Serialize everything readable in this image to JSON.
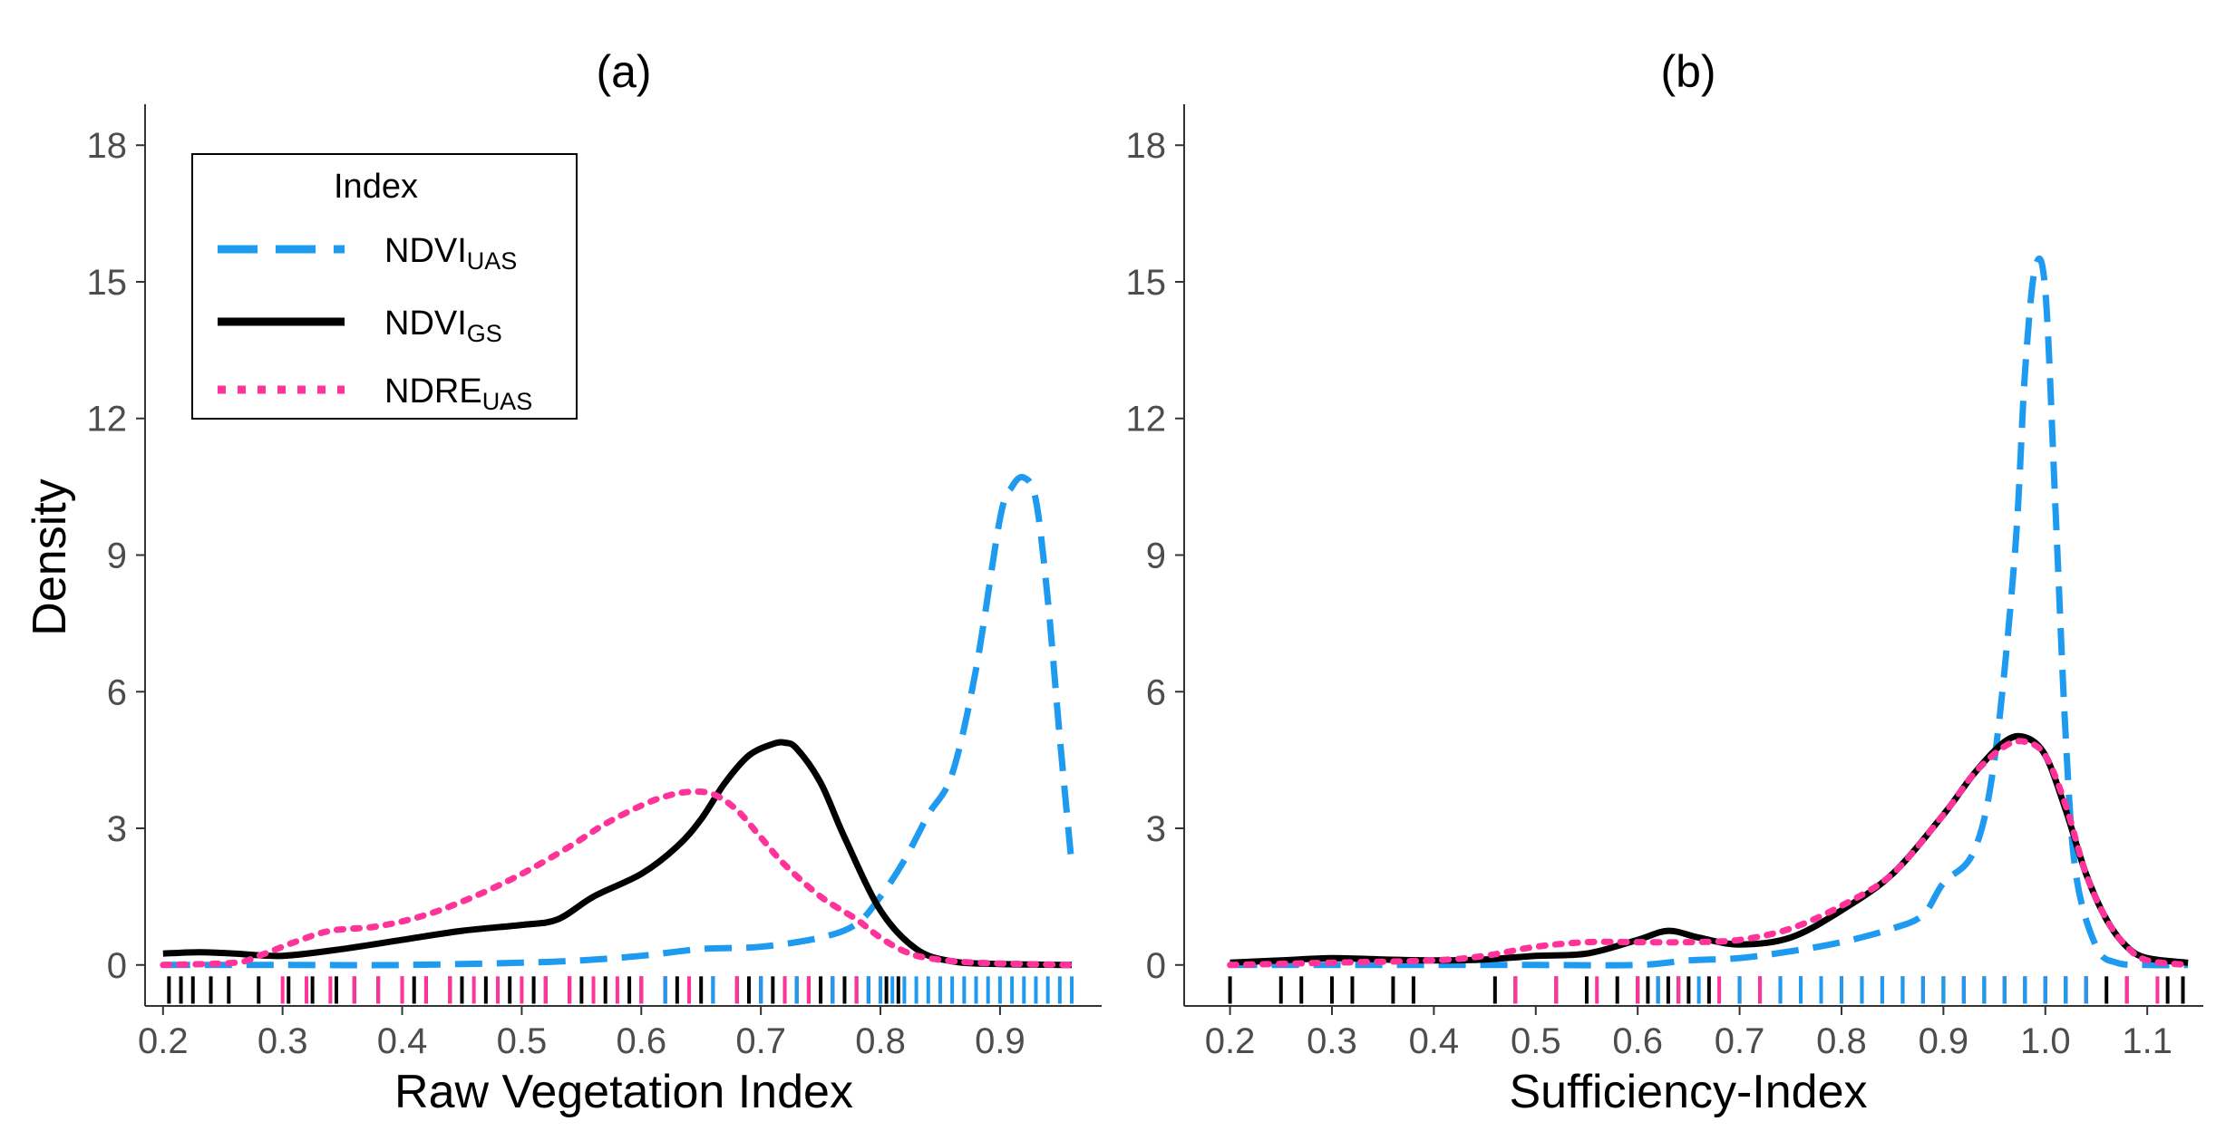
{
  "ylabel": "Density",
  "legend": {
    "title": "Index",
    "items": [
      {
        "base": "NDVI",
        "sub": "UAS",
        "color": "#1E9BF0",
        "dash": "dashed"
      },
      {
        "base": "NDVI",
        "sub": "GS",
        "color": "#000000",
        "dash": "solid"
      },
      {
        "base": "NDRE",
        "sub": "UAS",
        "color": "#FF3399",
        "dash": "dotted"
      }
    ]
  },
  "chart_data": [
    {
      "type": "line",
      "title": "(a)",
      "xlabel": "Raw Vegetation Index",
      "ylabel": "Density",
      "xlim": [
        0.185,
        0.985
      ],
      "ylim": [
        -0.9,
        18.9
      ],
      "xticks": [
        0.2,
        0.3,
        0.4,
        0.5,
        0.6,
        0.7,
        0.8,
        0.9
      ],
      "xtick_labels": [
        "0.2",
        "0.3",
        "0.4",
        "0.5",
        "0.6",
        "0.7",
        "0.8",
        "0.9"
      ],
      "yticks": [
        0,
        3,
        6,
        9,
        12,
        15,
        18
      ],
      "ytick_labels": [
        "0",
        "3",
        "6",
        "9",
        "12",
        "15",
        "18"
      ],
      "grid": false,
      "legend_position": "top-left",
      "series": [
        {
          "name": "NDVI_UAS",
          "color": "#1E9BF0",
          "dash": "dashed",
          "x": [
            0.2,
            0.3,
            0.4,
            0.5,
            0.55,
            0.6,
            0.65,
            0.7,
            0.75,
            0.78,
            0.8,
            0.82,
            0.84,
            0.86,
            0.88,
            0.9,
            0.91,
            0.92,
            0.93,
            0.94,
            0.95,
            0.96
          ],
          "y": [
            0.0,
            0.0,
            0.0,
            0.05,
            0.1,
            0.2,
            0.35,
            0.4,
            0.6,
            0.9,
            1.5,
            2.3,
            3.3,
            4.2,
            6.5,
            9.8,
            10.5,
            10.7,
            10.2,
            8.0,
            5.0,
            2.2
          ]
        },
        {
          "name": "NDVI_GS",
          "color": "#000000",
          "dash": "solid",
          "x": [
            0.2,
            0.23,
            0.26,
            0.3,
            0.35,
            0.4,
            0.45,
            0.5,
            0.53,
            0.56,
            0.6,
            0.63,
            0.65,
            0.67,
            0.69,
            0.71,
            0.72,
            0.73,
            0.75,
            0.77,
            0.8,
            0.83,
            0.86,
            0.9,
            0.96
          ],
          "y": [
            0.25,
            0.28,
            0.25,
            0.2,
            0.35,
            0.55,
            0.75,
            0.88,
            1.0,
            1.5,
            2.0,
            2.6,
            3.2,
            4.0,
            4.6,
            4.85,
            4.88,
            4.75,
            4.0,
            2.8,
            1.2,
            0.35,
            0.08,
            0.02,
            0.0
          ]
        },
        {
          "name": "NDRE_UAS",
          "color": "#FF3399",
          "dash": "dotted",
          "x": [
            0.2,
            0.26,
            0.28,
            0.31,
            0.34,
            0.38,
            0.42,
            0.46,
            0.5,
            0.54,
            0.57,
            0.6,
            0.62,
            0.64,
            0.66,
            0.68,
            0.7,
            0.72,
            0.75,
            0.78,
            0.8,
            0.82,
            0.84,
            0.88,
            0.96
          ],
          "y": [
            0.0,
            0.05,
            0.2,
            0.5,
            0.75,
            0.85,
            1.1,
            1.5,
            2.0,
            2.6,
            3.1,
            3.5,
            3.7,
            3.8,
            3.75,
            3.4,
            2.8,
            2.2,
            1.5,
            1.0,
            0.6,
            0.3,
            0.15,
            0.05,
            0.0
          ]
        }
      ],
      "rugs": [
        {
          "name": "NDVI_GS",
          "color": "#000000",
          "values": [
            0.205,
            0.215,
            0.225,
            0.24,
            0.255,
            0.28,
            0.305,
            0.325,
            0.345,
            0.36,
            0.38,
            0.4,
            0.41,
            0.42,
            0.44,
            0.45,
            0.47,
            0.49,
            0.51,
            0.52,
            0.54,
            0.55,
            0.57,
            0.59,
            0.6,
            0.62,
            0.63,
            0.65,
            0.66,
            0.68,
            0.69,
            0.7,
            0.71,
            0.72,
            0.73,
            0.74,
            0.75,
            0.76,
            0.77,
            0.78,
            0.79,
            0.805,
            0.815
          ]
        },
        {
          "name": "NDRE_UAS",
          "color": "#FF3399",
          "values": [
            0.3,
            0.32,
            0.34,
            0.36,
            0.38,
            0.4,
            0.42,
            0.44,
            0.46,
            0.48,
            0.5,
            0.52,
            0.54,
            0.56,
            0.58,
            0.6,
            0.62,
            0.64,
            0.66,
            0.68,
            0.7,
            0.72,
            0.74,
            0.76,
            0.78,
            0.8
          ]
        },
        {
          "name": "NDVI_UAS",
          "color": "#1E9BF0",
          "values": [
            0.62,
            0.66,
            0.7,
            0.73,
            0.76,
            0.79,
            0.8,
            0.81,
            0.82,
            0.83,
            0.84,
            0.85,
            0.86,
            0.87,
            0.88,
            0.89,
            0.9,
            0.91,
            0.92,
            0.93,
            0.94,
            0.95,
            0.96
          ]
        }
      ]
    },
    {
      "type": "line",
      "title": "(b)",
      "xlabel": "Sufficiency-Index",
      "ylabel": "",
      "xlim": [
        0.155,
        1.155
      ],
      "ylim": [
        -0.9,
        18.9
      ],
      "xticks": [
        0.2,
        0.3,
        0.4,
        0.5,
        0.6,
        0.7,
        0.8,
        0.9,
        1.0,
        1.1
      ],
      "xtick_labels": [
        "0.2",
        "0.3",
        "0.4",
        "0.5",
        "0.6",
        "0.7",
        "0.8",
        "0.9",
        "1.0",
        "1.1"
      ],
      "yticks": [
        0,
        3,
        6,
        9,
        12,
        15,
        18
      ],
      "ytick_labels": [
        "0",
        "3",
        "6",
        "9",
        "12",
        "15",
        "18"
      ],
      "grid": false,
      "series": [
        {
          "name": "NDVI_UAS",
          "color": "#1E9BF0",
          "dash": "dashed",
          "x": [
            0.2,
            0.3,
            0.4,
            0.5,
            0.6,
            0.65,
            0.7,
            0.75,
            0.8,
            0.85,
            0.88,
            0.9,
            0.93,
            0.95,
            0.97,
            0.98,
            0.99,
            1.0,
            1.01,
            1.02,
            1.03,
            1.05,
            1.07,
            1.1,
            1.14
          ],
          "y": [
            0.0,
            0.0,
            0.0,
            0.0,
            0.0,
            0.1,
            0.15,
            0.3,
            0.5,
            0.8,
            1.1,
            1.8,
            2.5,
            4.5,
            9.0,
            13.0,
            15.3,
            14.8,
            10.0,
            5.0,
            2.0,
            0.4,
            0.05,
            0.0,
            0.0
          ]
        },
        {
          "name": "NDVI_GS",
          "color": "#000000",
          "dash": "solid",
          "x": [
            0.2,
            0.25,
            0.3,
            0.35,
            0.4,
            0.45,
            0.5,
            0.55,
            0.6,
            0.63,
            0.66,
            0.7,
            0.75,
            0.8,
            0.85,
            0.9,
            0.93,
            0.96,
            0.98,
            1.0,
            1.02,
            1.04,
            1.06,
            1.08,
            1.1,
            1.14
          ],
          "y": [
            0.05,
            0.1,
            0.15,
            0.12,
            0.1,
            0.12,
            0.2,
            0.25,
            0.55,
            0.75,
            0.6,
            0.45,
            0.6,
            1.2,
            2.0,
            3.3,
            4.2,
            4.9,
            5.0,
            4.6,
            3.4,
            2.0,
            1.0,
            0.4,
            0.15,
            0.05
          ]
        },
        {
          "name": "NDRE_UAS",
          "color": "#FF3399",
          "dash": "dotted",
          "x": [
            0.2,
            0.3,
            0.4,
            0.45,
            0.5,
            0.55,
            0.6,
            0.65,
            0.7,
            0.75,
            0.8,
            0.85,
            0.9,
            0.93,
            0.96,
            0.98,
            1.0,
            1.02,
            1.04,
            1.06,
            1.08,
            1.1,
            1.14
          ],
          "y": [
            0.0,
            0.05,
            0.1,
            0.2,
            0.4,
            0.5,
            0.5,
            0.5,
            0.55,
            0.8,
            1.3,
            2.0,
            3.3,
            4.2,
            4.8,
            4.9,
            4.6,
            3.5,
            2.0,
            1.0,
            0.4,
            0.1,
            0.0
          ]
        }
      ],
      "rugs": [
        {
          "name": "NDVI_GS",
          "color": "#000000",
          "values": [
            0.2,
            0.25,
            0.27,
            0.3,
            0.32,
            0.36,
            0.38,
            0.46,
            0.48,
            0.52,
            0.55,
            0.58,
            0.6,
            0.61,
            0.62,
            0.63,
            0.64,
            0.65,
            0.67,
            0.7,
            0.72,
            0.74,
            0.76,
            0.78,
            0.8,
            0.82,
            0.84,
            0.86,
            0.88,
            0.9,
            0.92,
            0.94,
            0.96,
            0.98,
            1.0,
            1.02,
            1.04,
            1.06,
            1.08,
            1.12,
            1.135
          ]
        },
        {
          "name": "NDRE_UAS",
          "color": "#FF3399",
          "values": [
            0.48,
            0.52,
            0.56,
            0.6,
            0.64,
            0.68,
            0.72,
            0.76,
            0.8,
            0.84,
            0.88,
            0.92,
            0.96,
            1.0,
            1.04,
            1.08,
            1.11
          ]
        },
        {
          "name": "NDVI_UAS",
          "color": "#1E9BF0",
          "values": [
            0.62,
            0.66,
            0.7,
            0.74,
            0.76,
            0.78,
            0.8,
            0.82,
            0.84,
            0.86,
            0.88,
            0.9,
            0.92,
            0.94,
            0.96,
            0.98,
            1.0,
            1.02,
            1.04
          ]
        }
      ]
    }
  ]
}
